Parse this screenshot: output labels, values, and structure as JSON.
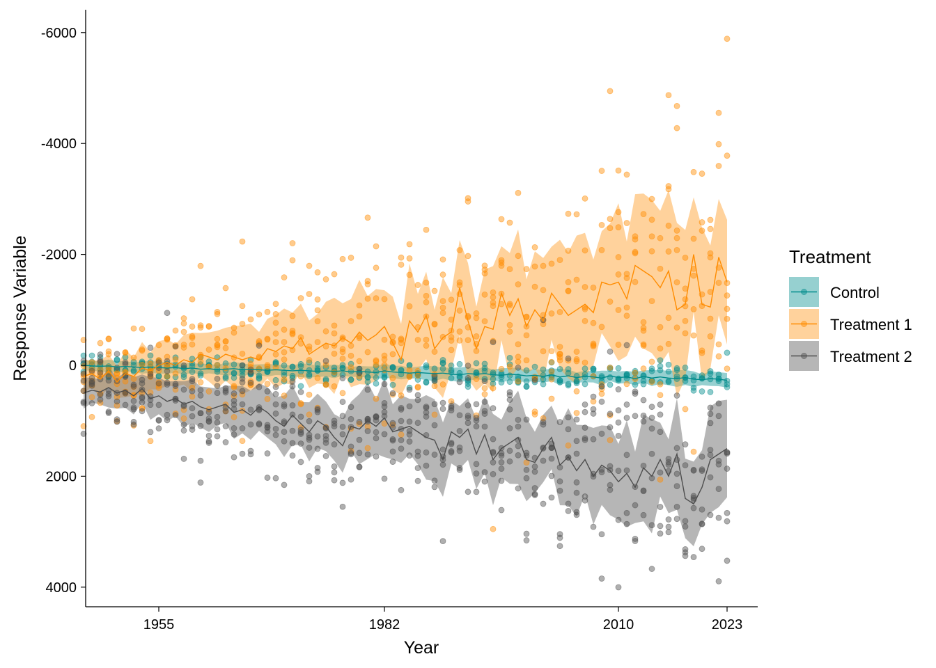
{
  "chart_data": {
    "type": "line",
    "title": "",
    "xlabel": "Year",
    "ylabel": "Response Variable",
    "y_reversed": true,
    "ylim": [
      -6400,
      4350
    ],
    "xlim": [
      1937,
      2026
    ],
    "x_ticks": [
      1955,
      1982,
      2010,
      2023
    ],
    "y_ticks": [
      -6000,
      -4000,
      -2000,
      0,
      2000,
      4000
    ],
    "x_tick_labels": [
      "1955",
      "1982",
      "2010",
      "2023"
    ],
    "y_tick_labels": [
      "-6000",
      "-4000",
      "-2000",
      "0",
      "2000",
      "4000"
    ],
    "grid": false,
    "legend": {
      "title": "Treatment",
      "position": "right"
    },
    "year_start": 1946,
    "year_end": 2023,
    "series": [
      {
        "name": "Control",
        "color": "#008B8B",
        "ribbon_color": "#40A9A9",
        "sd_start": 90,
        "sd_end": 130,
        "points_per_year": 4,
        "mean": [
          0,
          10,
          20,
          10,
          30,
          20,
          30,
          40,
          30,
          40,
          50,
          40,
          60,
          50,
          70,
          60,
          80,
          70,
          60,
          80,
          70,
          80,
          90,
          80,
          90,
          100,
          90,
          100,
          110,
          100,
          110,
          100,
          120,
          110,
          120,
          130,
          100,
          120,
          130,
          140,
          130,
          140,
          150,
          140,
          160,
          170,
          150,
          160,
          150,
          170,
          180,
          160,
          170,
          190,
          180,
          200,
          170,
          210,
          190,
          220,
          200,
          210,
          230,
          190,
          220,
          210,
          240,
          200,
          230,
          210,
          230,
          240,
          220,
          250,
          260,
          240,
          250,
          270
        ]
      },
      {
        "name": "Treatment 1",
        "color": "#FF8C00",
        "ribbon_color": "#FFA53A",
        "sd_start": 300,
        "sd_end": 1400,
        "points_per_year": 7,
        "mean": [
          200,
          150,
          250,
          100,
          300,
          150,
          200,
          50,
          100,
          0,
          -50,
          0,
          -100,
          -50,
          -200,
          -150,
          -100,
          -200,
          -150,
          -100,
          -150,
          -100,
          -300,
          -250,
          -350,
          -300,
          -500,
          -200,
          -300,
          -400,
          -350,
          -500,
          -400,
          -600,
          -450,
          -550,
          -700,
          -400,
          -100,
          -800,
          -600,
          -900,
          -300,
          -500,
          -600,
          -1400,
          -800,
          -300,
          -700,
          -650,
          -1300,
          -900,
          -1200,
          -700,
          -1000,
          -800,
          -1300,
          -1100,
          -900,
          -1000,
          -1100,
          -950,
          -1500,
          -1450,
          -1500,
          -1200,
          -1800,
          -1700,
          -1600,
          -1400,
          -1700,
          -1000,
          -1100,
          -2000,
          -1100,
          -1050,
          -1950,
          -1500
        ]
      },
      {
        "name": "Treatment 2",
        "color": "#4D4D4D",
        "ribbon_color": "#7A7A7A",
        "sd_start": 280,
        "sd_end": 900,
        "points_per_year": 7,
        "mean": [
          500,
          450,
          480,
          400,
          500,
          450,
          550,
          420,
          600,
          550,
          650,
          600,
          700,
          650,
          750,
          800,
          750,
          700,
          850,
          800,
          900,
          750,
          850,
          1000,
          1100,
          900,
          1050,
          1200,
          1000,
          1100,
          1300,
          1450,
          1100,
          1150,
          1000,
          1100,
          950,
          1200,
          1150,
          1100,
          1200,
          1300,
          1350,
          1700,
          1200,
          1300,
          1150,
          1600,
          1250,
          1700,
          1500,
          1400,
          1300,
          1700,
          1750,
          1500,
          1300,
          1800,
          1650,
          1900,
          1700,
          2000,
          1800,
          1900,
          2100,
          1950,
          2200,
          1850,
          2000,
          1700,
          2000,
          1600,
          2400,
          2500,
          2200,
          1700,
          1600,
          1500
        ]
      }
    ]
  }
}
